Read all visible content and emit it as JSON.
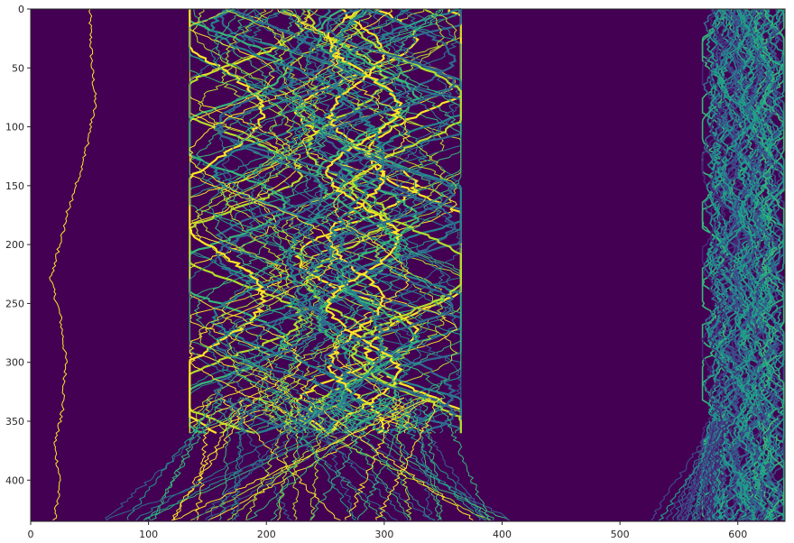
{
  "chart_data": {
    "type": "heatmap",
    "title": "",
    "xlabel": "",
    "ylabel": "",
    "xlim": [
      0,
      640
    ],
    "ylim": [
      435,
      0
    ],
    "x_ticks": [
      0,
      100,
      200,
      300,
      400,
      500,
      600
    ],
    "y_ticks": [
      0,
      50,
      100,
      150,
      200,
      250,
      300,
      350,
      400
    ],
    "x_tick_labels": [
      "0",
      "100",
      "200",
      "300",
      "400",
      "500",
      "600"
    ],
    "y_tick_labels": [
      "0",
      "50",
      "100",
      "150",
      "200",
      "250",
      "300",
      "350",
      "400"
    ],
    "grid": false,
    "legend": "none",
    "colormap": "viridis",
    "background_color": "#440154",
    "palette": [
      "#fde725",
      "#b5de2b",
      "#35b779",
      "#1f9e89",
      "#26828e",
      "#31688e",
      "#3e4989",
      "#482878"
    ],
    "regions": [
      {
        "name": "left-trace",
        "x_range": [
          15,
          60
        ],
        "y_range": [
          0,
          435
        ]
      },
      {
        "name": "central-band-top",
        "x_range": [
          135,
          400
        ],
        "y_range": [
          0,
          360
        ]
      },
      {
        "name": "central-band-bottom-fan",
        "x_range": [
          50,
          410
        ],
        "y_range": [
          360,
          435
        ]
      },
      {
        "name": "right-band",
        "x_range": [
          570,
          640
        ],
        "y_range": [
          0,
          435
        ]
      },
      {
        "name": "right-band-bottom-fan",
        "x_range": [
          525,
          640
        ],
        "y_range": [
          360,
          435
        ]
      }
    ]
  }
}
